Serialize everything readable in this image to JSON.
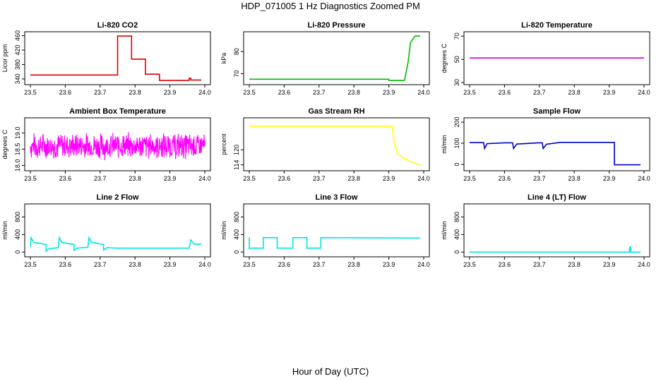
{
  "page": {
    "title": "HDP_071005  1 Hz Diagnostics Zoomed PM",
    "xlabel": "Hour of Day (UTC)"
  },
  "chart_data": [
    {
      "type": "line",
      "title": "Li-820 CO2",
      "ylabel": "Licor ppm",
      "xlim": [
        23.5,
        24.0
      ],
      "ylim": [
        330,
        465
      ],
      "xticks": [
        23.5,
        23.6,
        23.7,
        23.8,
        23.9,
        24.0
      ],
      "yticks": [
        340,
        380,
        420,
        460
      ],
      "color": "#dd0000",
      "series": [
        {
          "x": [
            23.5,
            23.75,
            23.75,
            23.79,
            23.79,
            23.83,
            23.83,
            23.87,
            23.87,
            23.955,
            23.955,
            23.96,
            23.96,
            23.99
          ],
          "values": [
            351,
            351,
            459,
            459,
            395,
            395,
            353,
            353,
            336,
            336,
            342,
            342,
            337,
            337
          ]
        }
      ]
    },
    {
      "type": "line",
      "title": "Li-820 Pressure",
      "ylabel": "kPa",
      "xlim": [
        23.5,
        24.0
      ],
      "ylim": [
        66,
        88
      ],
      "xticks": [
        23.5,
        23.6,
        23.7,
        23.8,
        23.9,
        24.0
      ],
      "yticks": [
        70,
        80
      ],
      "color": "#00bb00",
      "series": [
        {
          "x": [
            23.5,
            23.9,
            23.9,
            23.945,
            23.955,
            23.962,
            23.975,
            23.99
          ],
          "values": [
            67.5,
            67.5,
            67.0,
            67.0,
            75.0,
            84.0,
            87.0,
            87.0
          ]
        }
      ]
    },
    {
      "type": "line",
      "title": "Li-820 Temperature",
      "ylabel": "degrees C",
      "xlim": [
        23.5,
        24.0
      ],
      "ylim": [
        30,
        72
      ],
      "xticks": [
        23.5,
        23.6,
        23.7,
        23.8,
        23.9,
        24.0
      ],
      "yticks": [
        30,
        50,
        70
      ],
      "color": "#cc00cc",
      "series": [
        {
          "x": [
            23.5,
            24.0
          ],
          "values": [
            51.2,
            51.2
          ]
        }
      ]
    },
    {
      "type": "line",
      "title": "Ambient Box Temperature",
      "ylabel": "degrees C",
      "xlim": [
        23.5,
        24.0
      ],
      "ylim": [
        17.9,
        19.4
      ],
      "xticks": [
        23.5,
        23.6,
        23.7,
        23.8,
        23.9,
        24.0
      ],
      "yticks": [
        18.0,
        18.5,
        19.0
      ],
      "color": "#ff00ff",
      "noise_center": 18.6,
      "noise_amplitude": 0.45
    },
    {
      "type": "line",
      "title": "Gas Stream RH",
      "ylabel": "percent",
      "xlim": [
        23.5,
        24.0
      ],
      "ylim": [
        112.5,
        132
      ],
      "xticks": [
        23.5,
        23.6,
        23.7,
        23.8,
        23.9,
        24.0
      ],
      "yticks": [
        114,
        120
      ],
      "color": "#ffff00",
      "series": [
        {
          "x": [
            23.5,
            23.91,
            23.915,
            23.925,
            23.94,
            23.96,
            23.99
          ],
          "values": [
            129.5,
            129.5,
            123,
            118.5,
            117,
            115.5,
            113.8
          ]
        }
      ]
    },
    {
      "type": "line",
      "title": "Sample Flow",
      "ylabel": "ml/min",
      "xlim": [
        23.5,
        24.0
      ],
      "ylim": [
        -20,
        210
      ],
      "xticks": [
        23.5,
        23.6,
        23.7,
        23.8,
        23.9,
        24.0
      ],
      "yticks": [
        0,
        100,
        200
      ],
      "color": "#0000cc",
      "series": [
        {
          "x": [
            23.5,
            23.54,
            23.543,
            23.55,
            23.6,
            23.623,
            23.626,
            23.635,
            23.7,
            23.708,
            23.711,
            23.72,
            23.75,
            23.76,
            23.915,
            23.915,
            23.99
          ],
          "values": [
            103,
            103,
            75,
            98,
            102,
            102,
            75,
            96,
            102,
            102,
            75,
            95,
            102,
            104,
            104,
            -2,
            -2
          ]
        }
      ]
    },
    {
      "type": "line",
      "title": "Line 2 Flow",
      "ylabel": "ml/min",
      "xlim": [
        23.5,
        24.0
      ],
      "ylim": [
        -60,
        1050
      ],
      "xticks": [
        23.5,
        23.6,
        23.7,
        23.8,
        23.9,
        24.0
      ],
      "yticks": [
        0,
        400,
        800
      ],
      "color": "#00e5e5",
      "series": [
        {
          "x": [
            23.5,
            23.502,
            23.51,
            23.54,
            23.545,
            23.545,
            23.555,
            23.58,
            23.583,
            23.59,
            23.62,
            23.625,
            23.625,
            23.635,
            23.665,
            23.668,
            23.675,
            23.705,
            23.71,
            23.71,
            23.72,
            23.75,
            23.955,
            23.96,
            23.97,
            23.99
          ],
          "values": [
            110,
            330,
            220,
            180,
            175,
            20,
            80,
            100,
            330,
            220,
            180,
            175,
            40,
            90,
            110,
            330,
            220,
            180,
            175,
            50,
            100,
            90,
            90,
            280,
            180,
            180
          ]
        }
      ]
    },
    {
      "type": "line",
      "title": "Line 3 Flow",
      "ylabel": "ml/min",
      "xlim": [
        23.5,
        24.0
      ],
      "ylim": [
        -60,
        1050
      ],
      "xticks": [
        23.5,
        23.6,
        23.7,
        23.8,
        23.9,
        24.0
      ],
      "yticks": [
        0,
        400,
        800
      ],
      "color": "#00e5e5",
      "series": [
        {
          "x": [
            23.5,
            23.5,
            23.502,
            23.54,
            23.54,
            23.58,
            23.58,
            23.625,
            23.625,
            23.665,
            23.665,
            23.705,
            23.705,
            23.99
          ],
          "values": [
            340,
            80,
            90,
            90,
            330,
            330,
            90,
            90,
            330,
            330,
            90,
            90,
            330,
            320
          ]
        }
      ]
    },
    {
      "type": "line",
      "title": "Line 4 (LT) Flow",
      "ylabel": "ml/min",
      "xlim": [
        23.5,
        24.0
      ],
      "ylim": [
        -60,
        1050
      ],
      "xticks": [
        23.5,
        23.6,
        23.7,
        23.8,
        23.9,
        24.0
      ],
      "yticks": [
        0,
        400,
        800
      ],
      "color": "#00e5e5",
      "series": [
        {
          "x": [
            23.5,
            23.958,
            23.959,
            23.961,
            23.962,
            23.99
          ],
          "values": [
            0,
            0,
            120,
            120,
            0,
            0
          ]
        }
      ]
    }
  ]
}
